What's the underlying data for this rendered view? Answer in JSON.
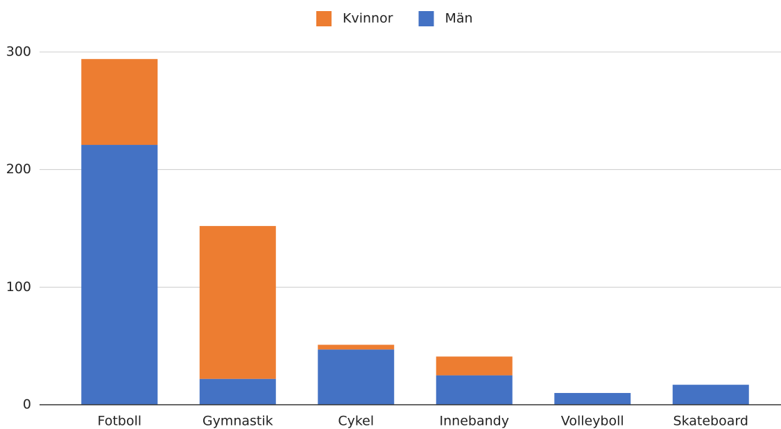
{
  "chart_data": {
    "type": "stacked_bar",
    "categories": [
      "Fotboll",
      "Gymnastik",
      "Cykel",
      "Innebandy",
      "Volleyboll",
      "Skateboard"
    ],
    "series": [
      {
        "name": "Kvinnor",
        "color": "#ed7d31",
        "values": [
          73,
          130,
          4,
          16,
          0,
          0
        ]
      },
      {
        "name": "Män",
        "color": "#4472c4",
        "values": [
          221,
          22,
          47,
          25,
          10,
          17
        ]
      }
    ],
    "ylim": [
      0,
      300
    ],
    "yticks": [
      0,
      100,
      200,
      300
    ],
    "grid": true,
    "legend": "top"
  }
}
